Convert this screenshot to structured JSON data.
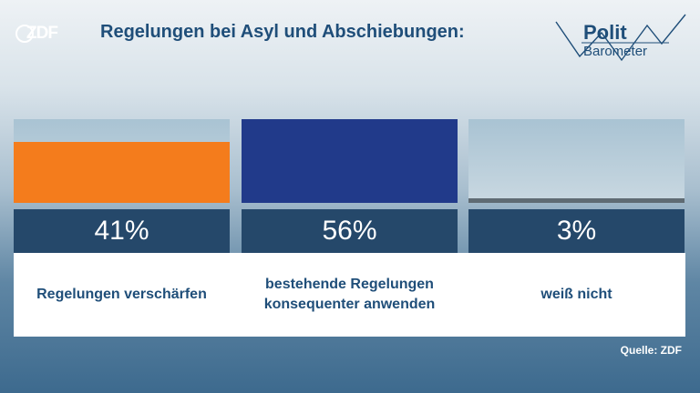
{
  "header": {
    "brand": "ZDF",
    "title": "Regelungen bei Asyl und Abschiebungen:",
    "logo_line1": "Polit",
    "logo_line2": "Barometer"
  },
  "chart_data": {
    "type": "bar",
    "title": "Regelungen bei Asyl und Abschiebungen:",
    "categories": [
      "Regelungen verschärfen",
      "bestehende Regelungen konsequenter anwenden",
      "weiß nicht"
    ],
    "values": [
      41,
      56,
      3
    ],
    "value_labels": [
      "41%",
      "56%",
      "3%"
    ],
    "unit": "%",
    "ylim": [
      0,
      56
    ],
    "colors": [
      "#f47c1c",
      "#213a8a",
      "#5f6b73"
    ]
  },
  "categories_display": [
    {
      "line1": "Regelungen verschärfen",
      "line2": ""
    },
    {
      "line1": "bestehende Regelungen",
      "line2": "konsequenter anwenden"
    },
    {
      "line1": "weiß nicht",
      "line2": ""
    }
  ],
  "footer": {
    "source": "Quelle: ZDF"
  }
}
